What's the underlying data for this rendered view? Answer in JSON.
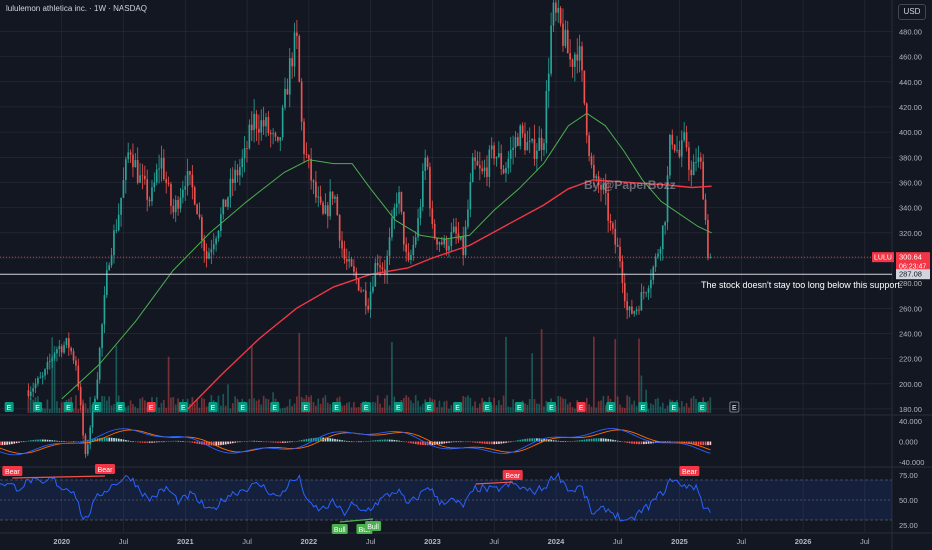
{
  "header": {
    "title": "lululemon athletica inc. · 1W · NASDAQ",
    "currency": "USD"
  },
  "watermark": "By @PaperBozz",
  "annotation": "The stock doesn't stay too long below this support.",
  "colors": {
    "bg": "#131722",
    "up": "#26a69a",
    "down": "#ef5350",
    "ma_fast": "#4caf50",
    "ma_slow": "#f23645",
    "rsi": "#2962ff",
    "macd": "#2962ff",
    "signal": "#ff6d00",
    "grid": "#2a2e39"
  },
  "chart_data": {
    "type": "candlestick",
    "title": "lululemon athletica inc. · 1W · NASDAQ",
    "price_axis": {
      "ticks": [
        180,
        200,
        220,
        240,
        260,
        280,
        300,
        320,
        340,
        360,
        380,
        400,
        420,
        440,
        460,
        480
      ],
      "range": [
        176,
        505
      ]
    },
    "time_axis": {
      "ticks": [
        "2020",
        "Jul",
        "2021",
        "Jul",
        "2022",
        "Jul",
        "2023",
        "Jul",
        "2024",
        "Jul",
        "2025",
        "Jul",
        "2026",
        "Jul"
      ],
      "x": [
        2020.0,
        2020.5,
        2021.0,
        2021.5,
        2022.0,
        2022.5,
        2023.0,
        2023.5,
        2024.0,
        2024.5,
        2025.0,
        2025.5,
        2026.0,
        2026.5
      ]
    },
    "ohlc_path": [
      [
        2019.73,
        195
      ],
      [
        2019.85,
        205
      ],
      [
        2019.95,
        228
      ],
      [
        2020.05,
        232
      ],
      [
        2020.12,
        215
      ],
      [
        2020.19,
        140
      ],
      [
        2020.28,
        200
      ],
      [
        2020.38,
        300
      ],
      [
        2020.45,
        330
      ],
      [
        2020.55,
        390
      ],
      [
        2020.62,
        365
      ],
      [
        2020.72,
        345
      ],
      [
        2020.8,
        380
      ],
      [
        2020.9,
        335
      ],
      [
        2021.0,
        365
      ],
      [
        2021.08,
        350
      ],
      [
        2021.17,
        300
      ],
      [
        2021.28,
        330
      ],
      [
        2021.38,
        360
      ],
      [
        2021.48,
        380
      ],
      [
        2021.55,
        410
      ],
      [
        2021.65,
        405
      ],
      [
        2021.75,
        385
      ],
      [
        2021.85,
        455
      ],
      [
        2021.9,
        475
      ],
      [
        2021.95,
        392
      ],
      [
        2022.05,
        350
      ],
      [
        2022.12,
        330
      ],
      [
        2022.2,
        355
      ],
      [
        2022.28,
        300
      ],
      [
        2022.4,
        280
      ],
      [
        2022.48,
        265
      ],
      [
        2022.55,
        300
      ],
      [
        2022.62,
        290
      ],
      [
        2022.72,
        355
      ],
      [
        2022.8,
        290
      ],
      [
        2022.88,
        325
      ],
      [
        2022.95,
        385
      ],
      [
        2023.0,
        320
      ],
      [
        2023.1,
        310
      ],
      [
        2023.18,
        320
      ],
      [
        2023.25,
        305
      ],
      [
        2023.33,
        375
      ],
      [
        2023.4,
        365
      ],
      [
        2023.5,
        385
      ],
      [
        2023.58,
        370
      ],
      [
        2023.7,
        400
      ],
      [
        2023.8,
        385
      ],
      [
        2023.9,
        395
      ],
      [
        2023.97,
        495
      ],
      [
        2024.03,
        485
      ],
      [
        2024.12,
        455
      ],
      [
        2024.18,
        470
      ],
      [
        2024.25,
        405
      ],
      [
        2024.3,
        360
      ],
      [
        2024.38,
        355
      ],
      [
        2024.45,
        320
      ],
      [
        2024.52,
        300
      ],
      [
        2024.58,
        255
      ],
      [
        2024.65,
        260
      ],
      [
        2024.72,
        275
      ],
      [
        2024.8,
        295
      ],
      [
        2024.88,
        330
      ],
      [
        2024.93,
        400
      ],
      [
        2025.0,
        380
      ],
      [
        2025.05,
        395
      ],
      [
        2025.1,
        360
      ],
      [
        2025.13,
        380
      ],
      [
        2025.18,
        370
      ],
      [
        2025.23,
        305
      ],
      [
        2025.26,
        300.64
      ]
    ],
    "series": [
      {
        "name": "",
        "type": "ma",
        "values": [
          [
            2020.0,
            188
          ],
          [
            2020.3,
            215
          ],
          [
            2020.6,
            250
          ],
          [
            2020.9,
            290
          ],
          [
            2021.2,
            320
          ],
          [
            2021.5,
            345
          ],
          [
            2021.8,
            368
          ],
          [
            2022.0,
            378
          ],
          [
            2022.2,
            375
          ],
          [
            2022.35,
            375
          ],
          [
            2022.5,
            355
          ],
          [
            2022.7,
            330
          ],
          [
            2022.9,
            318
          ],
          [
            2023.1,
            315
          ],
          [
            2023.3,
            318
          ],
          [
            2023.5,
            338
          ],
          [
            2023.7,
            355
          ],
          [
            2023.9,
            375
          ],
          [
            2024.0,
            390
          ],
          [
            2024.1,
            405
          ],
          [
            2024.25,
            415
          ],
          [
            2024.4,
            405
          ],
          [
            2024.55,
            385
          ],
          [
            2024.7,
            362
          ],
          [
            2024.85,
            345
          ],
          [
            2025.0,
            335
          ],
          [
            2025.15,
            325
          ],
          [
            2025.26,
            320
          ]
        ]
      },
      {
        "name": "",
        "type": "ma",
        "values": [
          [
            2021.0,
            178
          ],
          [
            2021.3,
            208
          ],
          [
            2021.6,
            236
          ],
          [
            2021.9,
            260
          ],
          [
            2022.2,
            277
          ],
          [
            2022.5,
            287
          ],
          [
            2022.8,
            292
          ],
          [
            2023.0,
            300
          ],
          [
            2023.3,
            310
          ],
          [
            2023.6,
            326
          ],
          [
            2023.9,
            342
          ],
          [
            2024.1,
            355
          ],
          [
            2024.3,
            362
          ],
          [
            2024.6,
            360
          ],
          [
            2024.9,
            358
          ],
          [
            2025.1,
            356
          ],
          [
            2025.26,
            357
          ]
        ]
      }
    ],
    "price_labels": {
      "last": "300.64",
      "countdown": "06:23:47",
      "symbol": "LULU",
      "support": "287.08"
    },
    "support_level": 287.08,
    "last_price": 300.64,
    "macd_pane": {
      "ticks": [
        "40.000",
        "0.000",
        "-40.000"
      ],
      "values": [
        40,
        0,
        -40
      ],
      "range": [
        -48,
        50
      ]
    },
    "rsi_pane": {
      "ticks": [
        "75.00",
        "50.00",
        "25.00"
      ],
      "values": [
        75,
        50,
        25
      ],
      "range": [
        18,
        82
      ],
      "band": [
        30,
        70
      ],
      "values_path": [
        [
          2019.5,
          68
        ],
        [
          2019.65,
          62
        ],
        [
          2019.75,
          70
        ],
        [
          2019.85,
          65
        ],
        [
          2019.92,
          72
        ],
        [
          2020.0,
          62
        ],
        [
          2020.1,
          60
        ],
        [
          2020.18,
          28
        ],
        [
          2020.3,
          55
        ],
        [
          2020.45,
          68
        ],
        [
          2020.55,
          74
        ],
        [
          2020.7,
          50
        ],
        [
          2020.85,
          62
        ],
        [
          2020.95,
          48
        ],
        [
          2021.05,
          56
        ],
        [
          2021.2,
          38
        ],
        [
          2021.35,
          55
        ],
        [
          2021.5,
          62
        ],
        [
          2021.6,
          66
        ],
        [
          2021.75,
          52
        ],
        [
          2021.85,
          68
        ],
        [
          2021.92,
          72
        ],
        [
          2022.0,
          45
        ],
        [
          2022.1,
          40
        ],
        [
          2022.2,
          48
        ],
        [
          2022.28,
          36
        ],
        [
          2022.35,
          46
        ],
        [
          2022.42,
          38
        ],
        [
          2022.5,
          42
        ],
        [
          2022.6,
          52
        ],
        [
          2022.72,
          60
        ],
        [
          2022.8,
          45
        ],
        [
          2022.9,
          55
        ],
        [
          2022.97,
          65
        ],
        [
          2023.05,
          48
        ],
        [
          2023.15,
          50
        ],
        [
          2023.25,
          44
        ],
        [
          2023.35,
          62
        ],
        [
          2023.5,
          60
        ],
        [
          2023.65,
          66
        ],
        [
          2023.8,
          58
        ],
        [
          2023.9,
          62
        ],
        [
          2024.0,
          76
        ],
        [
          2024.05,
          70
        ],
        [
          2024.12,
          58
        ],
        [
          2024.2,
          64
        ],
        [
          2024.3,
          35
        ],
        [
          2024.4,
          42
        ],
        [
          2024.5,
          34
        ],
        [
          2024.58,
          26
        ],
        [
          2024.65,
          35
        ],
        [
          2024.75,
          44
        ],
        [
          2024.88,
          60
        ],
        [
          2024.95,
          73
        ],
        [
          2025.02,
          62
        ],
        [
          2025.08,
          66
        ],
        [
          2025.15,
          60
        ],
        [
          2025.2,
          42
        ],
        [
          2025.26,
          40
        ]
      ]
    },
    "signals": [
      {
        "label": "Bear",
        "x": 2019.6,
        "pane": "rsi",
        "value": 72
      },
      {
        "label": "Bear",
        "x": 2020.35,
        "pane": "rsi",
        "value": 74
      },
      {
        "label": "Bull",
        "x": 2022.25,
        "pane": "rsi",
        "value": 28
      },
      {
        "label": "Bull",
        "x": 2022.45,
        "pane": "rsi",
        "value": 28
      },
      {
        "label": "Bull",
        "x": 2022.52,
        "pane": "rsi",
        "value": 31
      },
      {
        "label": "Bear",
        "x": 2023.65,
        "pane": "rsi",
        "value": 68
      },
      {
        "label": "Bear",
        "x": 2025.08,
        "pane": "rsi",
        "value": 72
      }
    ],
    "event_markers": {
      "label": "E",
      "x": [
        2019.57,
        2019.8,
        2020.05,
        2020.28,
        2020.47,
        2020.72,
        2020.98,
        2021.22,
        2021.46,
        2021.72,
        2021.97,
        2022.22,
        2022.46,
        2022.72,
        2022.97,
        2023.2,
        2023.44,
        2023.7,
        2023.96,
        2024.2,
        2024.44,
        2024.7,
        2024.95,
        2025.18,
        2025.44
      ],
      "x_down": [
        2020.72,
        2024.2
      ]
    }
  }
}
